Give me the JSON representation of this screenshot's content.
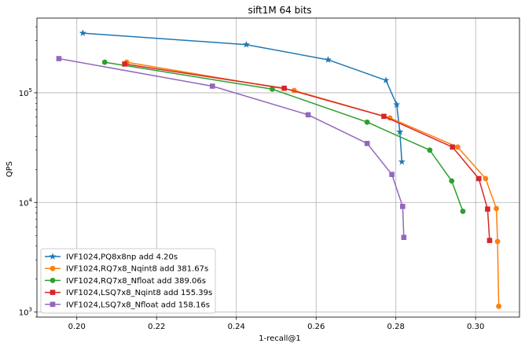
{
  "chart_data": {
    "type": "line",
    "title": "sift1M 64 bits",
    "xlabel": "1-recall@1",
    "ylabel": "QPS",
    "xlim": [
      0.19,
      0.311
    ],
    "ylim": [
      900,
      480000
    ],
    "yscale": "log",
    "grid": true,
    "legend_position": "lower-left",
    "x_ticks": [
      0.2,
      0.22,
      0.24,
      0.26,
      0.28,
      0.3
    ],
    "x_tick_labels": [
      "0.20",
      "0.22",
      "0.24",
      "0.26",
      "0.28",
      "0.30"
    ],
    "y_ticks": [
      {
        "value": 1000,
        "base": "10",
        "exp": "3"
      },
      {
        "value": 10000,
        "base": "10",
        "exp": "4"
      },
      {
        "value": 100000,
        "base": "10",
        "exp": "5"
      }
    ],
    "series": [
      {
        "name": "IVF1024,PQ8x8np add 4.20s",
        "color": "#1f77b4",
        "marker": "star",
        "points": [
          [
            0.2015,
            350000
          ],
          [
            0.2425,
            275000
          ],
          [
            0.263,
            200000
          ],
          [
            0.2775,
            130000
          ],
          [
            0.2802,
            78000
          ],
          [
            0.281,
            44000
          ],
          [
            0.2815,
            23500
          ]
        ]
      },
      {
        "name": "IVF1024,RQ7x8_Nqint8 add 381.67s",
        "color": "#ff7f0e",
        "marker": "circle",
        "points": [
          [
            0.2125,
            190000
          ],
          [
            0.2545,
            105000
          ],
          [
            0.2785,
            59000
          ],
          [
            0.2955,
            32000
          ],
          [
            0.3025,
            16500
          ],
          [
            0.3052,
            8800
          ],
          [
            0.3055,
            4400
          ],
          [
            0.3058,
            1130
          ]
        ]
      },
      {
        "name": "IVF1024,RQ7x8_Nfloat add 389.06s",
        "color": "#2ca02c",
        "marker": "circle",
        "points": [
          [
            0.207,
            190000
          ],
          [
            0.249,
            108000
          ],
          [
            0.2728,
            54000
          ],
          [
            0.2885,
            30000
          ],
          [
            0.294,
            15700
          ],
          [
            0.2968,
            8300
          ]
        ]
      },
      {
        "name": "IVF1024,LSQ7x8_Nqint8 add 155.39s",
        "color": "#d62728",
        "marker": "square",
        "points": [
          [
            0.212,
            183000
          ],
          [
            0.252,
            110000
          ],
          [
            0.277,
            61000
          ],
          [
            0.2942,
            32000
          ],
          [
            0.3008,
            16500
          ],
          [
            0.303,
            8700
          ],
          [
            0.3035,
            4500
          ]
        ]
      },
      {
        "name": "IVF1024,LSQ7x8_Nfloat add 158.16s",
        "color": "#9467bd",
        "marker": "square",
        "points": [
          [
            0.1955,
            205000
          ],
          [
            0.234,
            115000
          ],
          [
            0.258,
            63000
          ],
          [
            0.2728,
            34500
          ],
          [
            0.279,
            18000
          ],
          [
            0.2817,
            9200
          ],
          [
            0.282,
            4800
          ]
        ]
      }
    ]
  }
}
